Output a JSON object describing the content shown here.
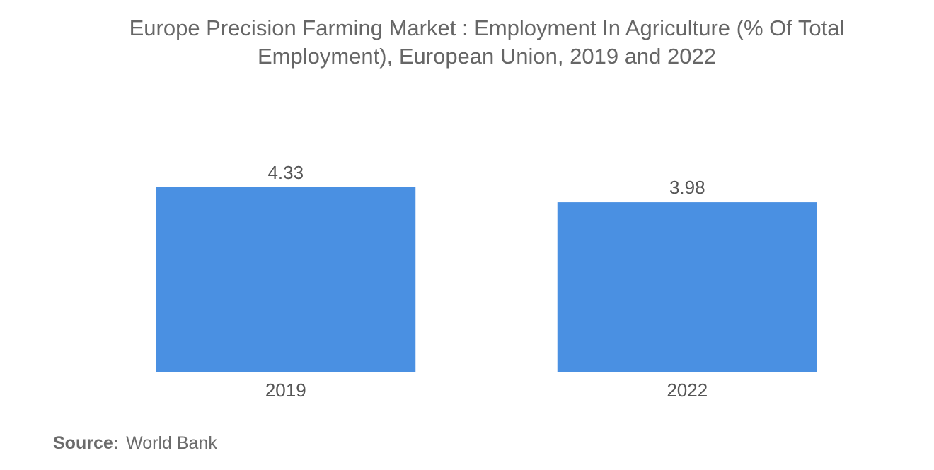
{
  "chart_data": {
    "type": "bar",
    "title": "Europe Precision Farming Market : Employment In Agriculture (% Of Total Employment), European Union, 2019 and 2022",
    "categories": [
      "2019",
      "2022"
    ],
    "series": [
      {
        "values": [
          4.33,
          3.98
        ]
      }
    ],
    "data_labels": [
      "4.33",
      "3.98"
    ],
    "xlabel": "",
    "ylabel": "",
    "ylim": [
      0,
      4.33
    ],
    "grid": false,
    "legend": "none",
    "bar_color": "#4a90e2"
  },
  "source": {
    "label": "Source:",
    "value": "World Bank"
  }
}
